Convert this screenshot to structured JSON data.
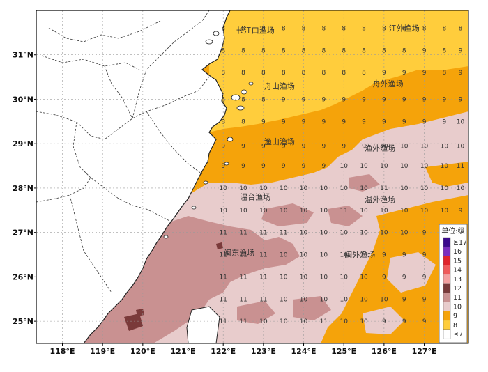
{
  "map": {
    "lat_labels": [
      "31°N",
      "30°N",
      "29°N",
      "28°N",
      "27°N",
      "26°N",
      "25°N"
    ],
    "lon_labels": [
      "118°E",
      "119°E",
      "120°E",
      "121°E",
      "122°E",
      "123°E",
      "124°E",
      "125°E",
      "126°E",
      "127°E"
    ],
    "fishing_grounds": [
      {
        "name": "长江口渔场",
        "lon": 122.8,
        "lat": 31.55
      },
      {
        "name": "江外渔场",
        "lon": 126.5,
        "lat": 31.6
      },
      {
        "name": "舟山渔场",
        "lon": 123.4,
        "lat": 30.3
      },
      {
        "name": "舟外渔场",
        "lon": 126.1,
        "lat": 30.35
      },
      {
        "name": "渔山渔场",
        "lon": 123.4,
        "lat": 29.05
      },
      {
        "name": "渔外渔场",
        "lon": 125.9,
        "lat": 28.9
      },
      {
        "name": "温台渔场",
        "lon": 122.8,
        "lat": 27.8
      },
      {
        "name": "温外渔场",
        "lon": 125.9,
        "lat": 27.75
      },
      {
        "name": "闽东渔场",
        "lon": 122.4,
        "lat": 26.55
      },
      {
        "name": "闽外渔场",
        "lon": 125.4,
        "lat": 26.5
      }
    ],
    "grid_rows": [
      {
        "lat": 31.6,
        "values": [
          "8",
          "8",
          "8",
          "8",
          "8",
          "8",
          "8",
          "8",
          "8",
          "8",
          "8",
          "8",
          "8"
        ]
      },
      {
        "lat": 31.1,
        "values": [
          "8",
          "8",
          "8",
          "8",
          "8",
          "8",
          "8",
          "8",
          "8",
          "8",
          "9",
          "8",
          "9"
        ]
      },
      {
        "lat": 30.6,
        "values": [
          "8",
          "8",
          "8",
          "8",
          "8",
          "8",
          "8",
          "8",
          "9",
          "9",
          "9",
          "8",
          "9"
        ]
      },
      {
        "lat": 30.0,
        "values": [
          "8",
          "8",
          "8",
          "9",
          "9",
          "9",
          "9",
          "9",
          "9",
          "9",
          "9",
          "9",
          "9"
        ]
      },
      {
        "lat": 29.5,
        "values": [
          "8",
          "8",
          "9",
          "9",
          "9",
          "9",
          "9",
          "9",
          "9",
          "9",
          "9",
          "9",
          "10"
        ]
      },
      {
        "lat": 28.95,
        "values": [
          "9",
          "9",
          "9",
          "9",
          "9",
          "9",
          "9",
          "9",
          "10",
          "10",
          "10",
          "10",
          "10"
        ]
      },
      {
        "lat": 28.5,
        "values": [
          "9",
          "9",
          "9",
          "9",
          "9",
          "9",
          "10",
          "10",
          "10",
          "10",
          "10",
          "10",
          "11"
        ]
      },
      {
        "lat": 28.0,
        "values": [
          "10",
          "10",
          "10",
          "10",
          "10",
          "10",
          "10",
          "10",
          "11",
          "10",
          "10",
          "10",
          "10"
        ]
      },
      {
        "lat": 27.5,
        "values": [
          "10",
          "10",
          "10",
          "10",
          "10",
          "10",
          "11",
          "10",
          "10",
          "10",
          "10",
          "10",
          "9"
        ]
      },
      {
        "lat": 27.0,
        "values": [
          "11",
          "11",
          "11",
          "11",
          "10",
          "10",
          "10",
          "10",
          "10",
          "10",
          "9",
          "9",
          "9"
        ]
      },
      {
        "lat": 26.5,
        "values": [
          "11",
          "11",
          "11",
          "10",
          "10",
          "10",
          "10",
          "10",
          "9",
          "9",
          "9",
          "9",
          "9"
        ]
      },
      {
        "lat": 26.0,
        "values": [
          "11",
          "11",
          "11",
          "10",
          "10",
          "10",
          "10",
          "10",
          "9",
          "9",
          "9",
          "9",
          "9"
        ]
      },
      {
        "lat": 25.5,
        "values": [
          "11",
          "11",
          "11",
          "10",
          "10",
          "10",
          "10",
          "10",
          "10",
          "9",
          "9",
          "9",
          "9"
        ]
      },
      {
        "lat": 25.0,
        "values": [
          "11",
          "11",
          "10",
          "10",
          "10",
          "11",
          "10",
          "10",
          "9",
          "9",
          "9",
          "9",
          "9"
        ]
      }
    ],
    "grid_lons": [
      122.0,
      122.5,
      123.0,
      123.5,
      124.0,
      124.5,
      125.0,
      125.5,
      126.0,
      126.5,
      127.0,
      127.5,
      127.9
    ],
    "legend": {
      "title": "单位:级",
      "items": [
        {
          "label": "≥17",
          "color": "#3b0a8c"
        },
        {
          "label": "16",
          "color": "#7b2fbe"
        },
        {
          "label": "15",
          "color": "#e0242a"
        },
        {
          "label": "14",
          "color": "#ef5a5a"
        },
        {
          "label": "13",
          "color": "#f4a0a0"
        },
        {
          "label": "12",
          "color": "#7a3a3a"
        },
        {
          "label": "11",
          "color": "#c99191"
        },
        {
          "label": "10",
          "color": "#e8cccc"
        },
        {
          "label": "9",
          "color": "#f5a30a"
        },
        {
          "label": "8",
          "color": "#ffcd3c"
        },
        {
          "label": "≤7",
          "color": "#ffffff"
        }
      ]
    },
    "colors": {
      "level8": "#ffcd3c",
      "level9": "#f5a30a",
      "level10": "#e8cccc",
      "level11": "#c99191",
      "level12": "#7a3a3a",
      "land": "#ffffff",
      "boundary": "#222222",
      "grid": "#9a9a9a"
    }
  }
}
